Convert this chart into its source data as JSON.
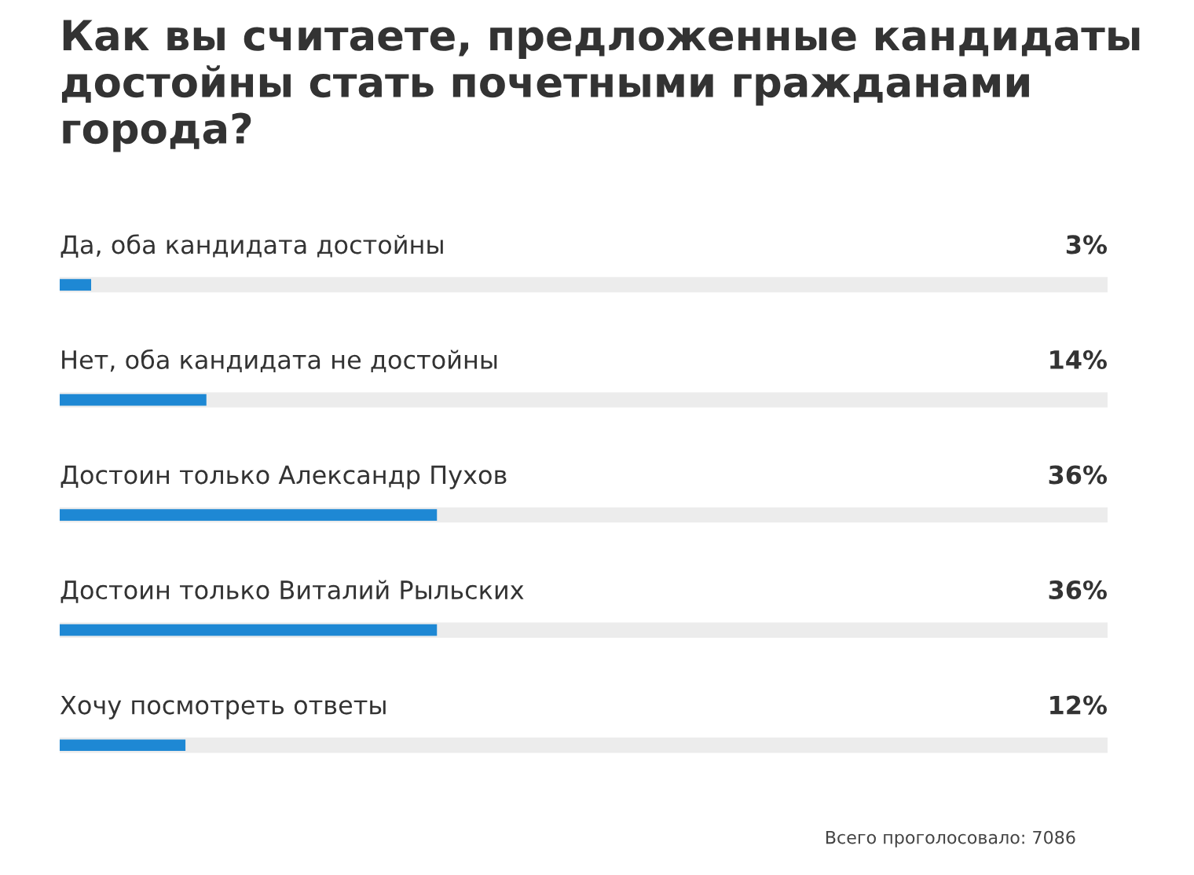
{
  "chart_data": {
    "type": "bar",
    "orientation": "horizontal",
    "title": "Как вы считаете, предложенные кандидаты достойны стать почетными гражданами города?",
    "categories": [
      "Да, оба кандидата достойны",
      "Нет, оба кандидата не достойны",
      "Достоин только Александр Пухов",
      "Достоин только Виталий Рыльских",
      "Хочу посмотреть ответы"
    ],
    "values": [
      3,
      14,
      36,
      36,
      12
    ],
    "value_labels": [
      "3%",
      "14%",
      "36%",
      "36%",
      "12%"
    ],
    "color": "#1e88d4",
    "xlim": [
      0,
      100
    ],
    "annotations": [
      "Всего проголосовало: 7086"
    ]
  }
}
